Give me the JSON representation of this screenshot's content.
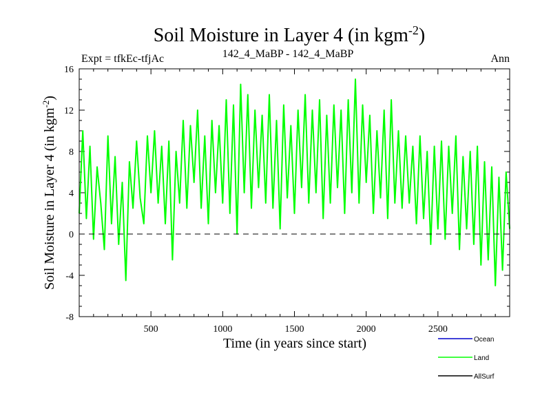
{
  "chart_data": {
    "type": "line",
    "title": "Soil Moisture in Layer 4 (in kgm",
    "title_sup": "-2",
    "title_close": ")",
    "subtitle_left": "Expt = tfkEc-tfjAc",
    "subtitle_center": "142_4_MaBP - 142_4_MaBP",
    "subtitle_right": "Ann",
    "xlabel": "Time (in years since start)",
    "ylabel": "Soil Moisture in Layer 4 (in kgm",
    "ylabel_sup": "-2",
    "ylabel_close": ")",
    "xlim": [
      0,
      3000
    ],
    "ylim": [
      -8,
      16
    ],
    "xticks": [
      500,
      1000,
      1500,
      2000,
      2500
    ],
    "yticks": [
      -8,
      -4,
      0,
      4,
      8,
      12,
      16
    ],
    "zero_line": true,
    "grid": false,
    "legend_position": "bottom-right, below plot",
    "series": [
      {
        "name": "Ocean",
        "color": "#0000cc",
        "x": [],
        "values": []
      },
      {
        "name": "Land",
        "color": "#00ff00",
        "x": [
          0,
          25,
          50,
          75,
          100,
          125,
          150,
          175,
          200,
          225,
          250,
          275,
          300,
          325,
          350,
          375,
          400,
          425,
          450,
          475,
          500,
          525,
          550,
          575,
          600,
          625,
          650,
          675,
          700,
          725,
          750,
          775,
          800,
          825,
          850,
          875,
          900,
          925,
          950,
          975,
          1000,
          1025,
          1050,
          1075,
          1100,
          1125,
          1150,
          1175,
          1200,
          1225,
          1250,
          1275,
          1300,
          1325,
          1350,
          1375,
          1400,
          1425,
          1450,
          1475,
          1500,
          1525,
          1550,
          1575,
          1600,
          1625,
          1650,
          1675,
          1700,
          1725,
          1750,
          1775,
          1800,
          1825,
          1850,
          1875,
          1900,
          1925,
          1950,
          1975,
          2000,
          2025,
          2050,
          2075,
          2100,
          2125,
          2150,
          2175,
          2200,
          2225,
          2250,
          2275,
          2300,
          2325,
          2350,
          2375,
          2400,
          2425,
          2450,
          2475,
          2500,
          2525,
          2550,
          2575,
          2600,
          2625,
          2650,
          2675,
          2700,
          2725,
          2750,
          2775,
          2800,
          2825,
          2850,
          2875,
          2900,
          2925,
          2950,
          2975,
          3000
        ],
        "values": [
          2.0,
          10.0,
          1.5,
          8.5,
          -0.5,
          6.5,
          3.0,
          -1.5,
          9.5,
          1.0,
          7.5,
          -1.0,
          5.0,
          -4.5,
          7.0,
          2.5,
          9.0,
          3.5,
          1.0,
          9.5,
          4.0,
          10.0,
          3.0,
          8.5,
          1.0,
          9.0,
          -2.5,
          8.0,
          3.0,
          11.0,
          2.5,
          10.5,
          5.0,
          12.0,
          2.5,
          9.5,
          1.0,
          11.0,
          4.0,
          10.5,
          3.0,
          13.0,
          2.0,
          12.5,
          0.0,
          14.5,
          4.0,
          13.5,
          2.5,
          12.0,
          4.5,
          11.5,
          3.0,
          13.5,
          2.5,
          11.0,
          0.5,
          12.5,
          3.5,
          10.5,
          2.0,
          12.0,
          4.5,
          13.5,
          3.0,
          12.0,
          4.0,
          13.0,
          1.5,
          11.5,
          3.0,
          12.5,
          4.5,
          12.0,
          2.0,
          13.0,
          4.0,
          15.0,
          3.0,
          12.5,
          5.0,
          11.5,
          2.0,
          10.0,
          3.5,
          12.0,
          1.5,
          13.0,
          3.0,
          10.0,
          2.5,
          9.5,
          3.0,
          8.5,
          1.0,
          9.5,
          1.5,
          8.0,
          -1.0,
          8.5,
          0.5,
          9.0,
          -0.5,
          8.5,
          2.0,
          9.5,
          -1.5,
          7.5,
          0.5,
          8.0,
          -1.0,
          8.5,
          -3.0,
          7.0,
          -2.5,
          6.5,
          -5.0,
          5.5,
          -3.5,
          6.0,
          0.5
        ]
      },
      {
        "name": "AllSurf",
        "color": "#000000",
        "x": [],
        "values": []
      }
    ]
  }
}
